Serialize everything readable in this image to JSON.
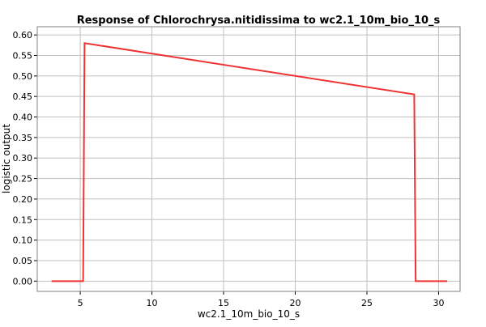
{
  "chart_data": {
    "type": "line",
    "title": "Response of Chlorochrysa.nitidissima to wc2.1_10m_bio_10_s",
    "xlabel": "wc2.1_10m_bio_10_s",
    "ylabel": "logistic output",
    "xlim": [
      2.0,
      31.5
    ],
    "ylim": [
      -0.025,
      0.62
    ],
    "xticks": [
      5,
      10,
      15,
      20,
      25,
      30
    ],
    "yticks": [
      0.0,
      0.05,
      0.1,
      0.15,
      0.2,
      0.25,
      0.3,
      0.35,
      0.4,
      0.45,
      0.5,
      0.55,
      0.6
    ],
    "xtick_labels": [
      "5",
      "10",
      "15",
      "20",
      "25",
      "30"
    ],
    "ytick_labels": [
      "0.00",
      "0.05",
      "0.10",
      "0.15",
      "0.20",
      "0.25",
      "0.30",
      "0.35",
      "0.40",
      "0.45",
      "0.50",
      "0.55",
      "0.60"
    ],
    "grid": true,
    "colors": {
      "series": "#ee3333",
      "grid": "#c0c0c0",
      "axis": "#000000",
      "text": "#000000"
    },
    "series": [
      {
        "x": [
          3.0,
          5.2,
          5.3,
          28.3,
          28.4,
          30.6
        ],
        "y": [
          0.0,
          0.0,
          0.58,
          0.455,
          0.0,
          0.0
        ]
      }
    ]
  }
}
